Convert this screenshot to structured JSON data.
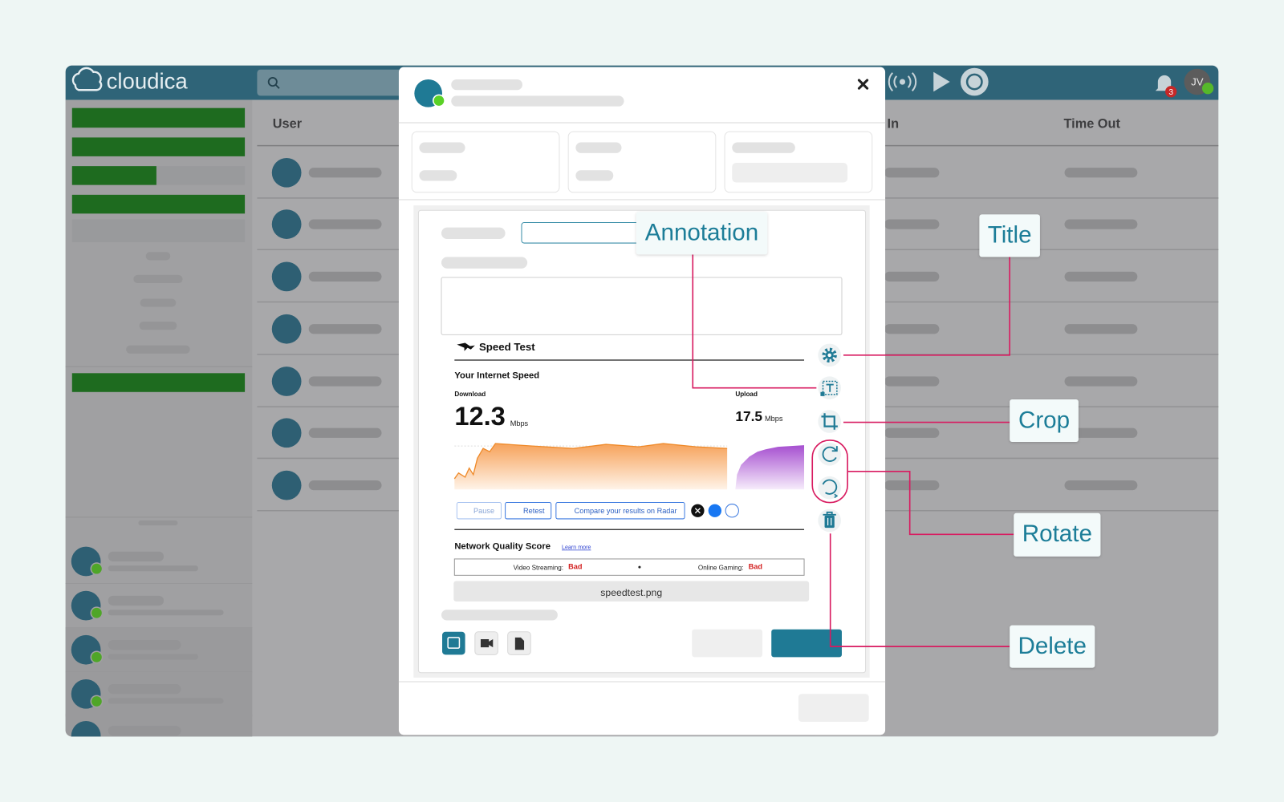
{
  "app": {
    "logo": "cloudica",
    "notification_count": "3",
    "user_initials": "JV",
    "table_headers": [
      "User",
      "Time In",
      "Time Out"
    ]
  },
  "modal": {
    "preview": {
      "title": "Speed Test",
      "heading": "Your Internet Speed",
      "download": {
        "label": "Download",
        "value": "12.3",
        "unit": "Mbps"
      },
      "upload": {
        "label": "Upload",
        "value": "17.5",
        "unit": "Mbps"
      },
      "buttons": [
        "Pause",
        "Retest",
        "Compare your results on Radar"
      ],
      "network_quality": {
        "title": "Network Quality Score",
        "link": "Learn more",
        "items": [
          {
            "label": "Video Streaming:",
            "status": "Bad"
          },
          {
            "label": "Online Gaming:",
            "status": "Bad"
          }
        ]
      },
      "filename": "speedtest.png"
    }
  },
  "callouts": [
    "Annotation",
    "Title",
    "Crop",
    "Rotate",
    "Delete"
  ]
}
